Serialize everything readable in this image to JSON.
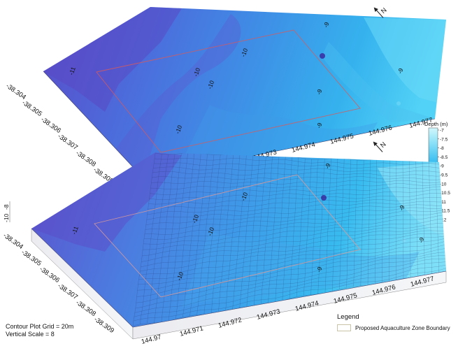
{
  "colorbar": {
    "title": "Depth (m)",
    "ticks": [
      "-7",
      "-7.5",
      "-8",
      "-8.5",
      "-9",
      "-9.5",
      "-10",
      "-10.5",
      "-11",
      "-11.5",
      "-12"
    ],
    "colors": [
      "#c8f4fb",
      "#9fe6fa",
      "#6fd7f6",
      "#45c3f2",
      "#32abeb",
      "#3a91e2",
      "#4678d9",
      "#5563cf",
      "#5f4fc4",
      "#5a3bb2",
      "#4a2a94"
    ]
  },
  "surfaces": {
    "lat_ticks": [
      "-38.304",
      "-38.305",
      "-38.306",
      "-38.307",
      "-38.308",
      "-38.309"
    ],
    "lon_ticks": [
      "144.97",
      "144.971",
      "144.972",
      "144.973",
      "144.974",
      "144.975",
      "144.976",
      "144.977"
    ],
    "north_label": "N"
  },
  "top_contours": [
    "-11",
    "-10",
    "-10",
    "-10",
    "-10",
    "-9",
    "-9",
    "-9",
    "-9"
  ],
  "bottom_contours": [
    "-11",
    "-10",
    "-10",
    "-10",
    "-10",
    "-9",
    "-9",
    "-9",
    "-9"
  ],
  "side_axis": [
    "-8",
    "-10"
  ],
  "notes": {
    "grid": "Contour Plot Grid = 20m",
    "scale": "Vertical Scale = 8"
  },
  "legend": {
    "title": "Legend",
    "entry": "Proposed Aquaculture Zone Boundary"
  }
}
